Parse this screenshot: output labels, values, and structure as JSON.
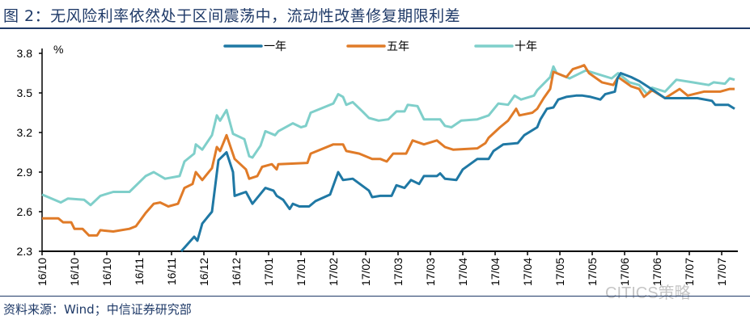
{
  "title": "图 2：无风险利率依然处于区间震荡中，流动性改善修复期限利差",
  "source": "资料来源：Wind；中信证券研究部",
  "watermark": "CITICS策略",
  "chart_data": {
    "type": "line",
    "title": "图 2：无风险利率依然处于区间震荡中，流动性改善修复期限利差",
    "ylabel": "%",
    "xlabel": "",
    "ylim": [
      2.3,
      3.8
    ],
    "yticks": [
      2.3,
      2.6,
      2.9,
      3.2,
      3.5,
      3.8
    ],
    "ytick_labels": [
      "2.3",
      "2.6",
      "2.9",
      "3.2",
      "3.5",
      "3.8"
    ],
    "xlim": [
      0,
      214
    ],
    "x_unit": "trading-day index (ticks every 10)",
    "xtick_labels": [
      "16/10",
      "16/10",
      "16/10",
      "16/11",
      "16/11",
      "16/12",
      "16/12",
      "17/01",
      "17/01",
      "17/02",
      "17/02",
      "17/03",
      "17/03",
      "17/04",
      "17/04",
      "17/04",
      "17/05",
      "17/05",
      "17/06",
      "17/06",
      "17/07",
      "17/07"
    ],
    "grid": false,
    "legend_position": "top",
    "colors": {
      "一年": "#1f78a4",
      "五年": "#e07b28",
      "十年": "#7fcfca"
    },
    "series": [
      {
        "name": "一年",
        "x": [
          43,
          47,
          48,
          49.5,
          52.5,
          54.5,
          57,
          59,
          59.5,
          63,
          65,
          69,
          71.5,
          72.5,
          74.5,
          76.5,
          77.5,
          79.5,
          82.5,
          84.5,
          89,
          91.5,
          93,
          96,
          101,
          102,
          104.5,
          108,
          109.5,
          112,
          114,
          116.5,
          118,
          122,
          123,
          124.5,
          128,
          130,
          134.5,
          138,
          139.5,
          142.5,
          147,
          149,
          153,
          154,
          156,
          158,
          159.5,
          162,
          165,
          167,
          169.5,
          172.5,
          174,
          177,
          177.8,
          178.8,
          182,
          184.5,
          187,
          189.5,
          192.5,
          197,
          200,
          202.5,
          207,
          208,
          212,
          214
        ],
        "values": [
          2.3,
          2.41,
          2.38,
          2.51,
          2.6,
          2.99,
          3.05,
          2.9,
          2.72,
          2.75,
          2.66,
          2.78,
          2.76,
          2.72,
          2.69,
          2.62,
          2.66,
          2.64,
          2.64,
          2.68,
          2.73,
          2.9,
          2.84,
          2.85,
          2.76,
          2.71,
          2.72,
          2.72,
          2.8,
          2.78,
          2.84,
          2.81,
          2.87,
          2.87,
          2.89,
          2.85,
          2.84,
          2.92,
          3.0,
          3.0,
          3.06,
          3.11,
          3.12,
          3.18,
          3.24,
          3.3,
          3.38,
          3.39,
          3.45,
          3.47,
          3.48,
          3.48,
          3.47,
          3.45,
          3.49,
          3.51,
          3.61,
          3.65,
          3.62,
          3.59,
          3.55,
          3.51,
          3.46,
          3.46,
          3.46,
          3.46,
          3.44,
          3.41,
          3.41,
          3.38
        ]
      },
      {
        "name": "五年",
        "x": [
          0,
          5,
          6.5,
          9,
          10,
          12.5,
          14.5,
          17,
          18,
          22,
          27,
          29,
          32,
          34.5,
          36.5,
          39,
          42,
          44,
          46.5,
          47.5,
          49.5,
          52.5,
          54,
          55,
          57,
          59.5,
          63,
          64,
          66.5,
          68,
          71,
          72.5,
          73,
          82,
          83,
          90,
          93,
          94,
          98,
          102,
          104.5,
          106.5,
          108.5,
          112.5,
          114.5,
          118,
          122,
          124.5,
          127,
          134.5,
          137,
          138,
          141.5,
          144,
          146.5,
          147.5,
          151.5,
          153,
          155,
          157,
          158,
          162,
          164,
          166.5,
          167.5,
          169,
          173,
          176.5,
          178,
          182,
          184.5,
          186,
          188.5,
          192.5,
          197,
          199.5,
          204.5,
          209.5,
          212.5,
          214
        ],
        "values": [
          2.55,
          2.55,
          2.52,
          2.52,
          2.47,
          2.47,
          2.42,
          2.42,
          2.46,
          2.45,
          2.47,
          2.49,
          2.59,
          2.66,
          2.67,
          2.64,
          2.66,
          2.78,
          2.81,
          2.9,
          2.84,
          2.93,
          3.09,
          3.06,
          3.18,
          3.0,
          2.92,
          2.85,
          2.87,
          2.94,
          2.96,
          2.92,
          2.96,
          2.97,
          3.04,
          3.11,
          3.11,
          3.06,
          3.04,
          3.0,
          3.0,
          2.98,
          3.04,
          3.04,
          3.14,
          3.11,
          3.14,
          3.09,
          3.07,
          3.08,
          3.12,
          3.16,
          3.24,
          3.29,
          3.38,
          3.33,
          3.35,
          3.38,
          3.46,
          3.53,
          3.66,
          3.62,
          3.68,
          3.7,
          3.71,
          3.65,
          3.58,
          3.56,
          3.62,
          3.55,
          3.53,
          3.47,
          3.52,
          3.46,
          3.53,
          3.48,
          3.51,
          3.51,
          3.53,
          3.53
        ]
      },
      {
        "name": "十年",
        "x": [
          0,
          5.8,
          8,
          13,
          15,
          18,
          22,
          27,
          32,
          34.5,
          38,
          42.5,
          44,
          47,
          47.5,
          49.5,
          52.5,
          54,
          55,
          57,
          59,
          62.5,
          64,
          65,
          67.5,
          69,
          72,
          73,
          77.5,
          80,
          81.5,
          83,
          90,
          91.5,
          93,
          94,
          96,
          99,
          101,
          104,
          107,
          109.5,
          112,
          113,
          116,
          118,
          123,
          124.5,
          126.5,
          129.5,
          134.5,
          138,
          141,
          144,
          146,
          148,
          152,
          153,
          157,
          158,
          159,
          163,
          168,
          172,
          176,
          178,
          181.5,
          184.5,
          187,
          188.5,
          192.5,
          196,
          201,
          206,
          207.5,
          211,
          212.5,
          214
        ],
        "values": [
          2.73,
          2.67,
          2.7,
          2.69,
          2.65,
          2.72,
          2.75,
          2.75,
          2.87,
          2.9,
          2.85,
          2.87,
          2.98,
          3.04,
          3.11,
          3.07,
          3.18,
          3.33,
          3.29,
          3.37,
          3.19,
          3.15,
          3.02,
          3.01,
          3.1,
          3.21,
          3.18,
          3.21,
          3.27,
          3.24,
          3.25,
          3.35,
          3.42,
          3.49,
          3.47,
          3.41,
          3.43,
          3.36,
          3.31,
          3.29,
          3.3,
          3.36,
          3.36,
          3.41,
          3.4,
          3.3,
          3.3,
          3.25,
          3.24,
          3.29,
          3.3,
          3.33,
          3.42,
          3.41,
          3.48,
          3.45,
          3.48,
          3.52,
          3.62,
          3.7,
          3.65,
          3.61,
          3.67,
          3.64,
          3.61,
          3.65,
          3.58,
          3.56,
          3.49,
          3.54,
          3.51,
          3.6,
          3.58,
          3.56,
          3.58,
          3.57,
          3.61,
          3.6
        ]
      }
    ]
  }
}
